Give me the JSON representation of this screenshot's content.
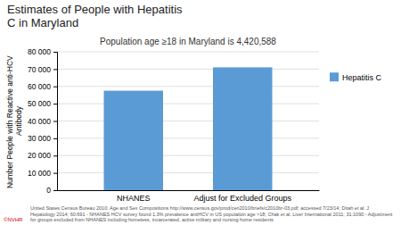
{
  "chart_data": {
    "type": "bar",
    "title": "Estimates of People with Hepatitis\nC in Maryland",
    "subtitle": "Population age ≥18 in Maryland is 4,420,588",
    "categories": [
      "NHANES",
      "Adjust for Excluded Groups"
    ],
    "series": [
      {
        "name": "Hepatitis C",
        "color": "#5B9BD5",
        "values": [
          57500,
          71000
        ]
      }
    ],
    "ylabel": "Number People with Reactive anti-HCV Antibody",
    "ylim": [
      0,
      80000
    ],
    "yticks": [
      0,
      {
        "value": 10000,
        "label": "10 000"
      },
      {
        "value": 20000,
        "label": "20 000"
      },
      {
        "value": 30000,
        "label": "30 000"
      },
      {
        "value": 40000,
        "label": "40 000"
      },
      {
        "value": 50000,
        "label": "50 000"
      },
      {
        "value": 60000,
        "label": "60 000"
      },
      {
        "value": 70000,
        "label": "70 000"
      },
      {
        "value": 80000,
        "label": "80 000"
      }
    ],
    "grid": true,
    "legend": "upper right",
    "footnote": "United States Census Bureau 2010: Age and Sex Compositions http://www.census.gov/prod/cen2010/briefs/c2010br-03.pdf; accessed 7/23/14; Ditah et al. J\nHepatology 2014; 60:691 - NHANES HCV survey found 1.3% prevalence antiHCV in US population age >18; Chak et al. Liver International 2011; 31:1090 - Adjustment\nfor groups excluded from NHANES including homeless, incarcerated, active military and nursing home residents",
    "annotations": [
      {
        "text": "©NVHR",
        "color": "#cc0000"
      }
    ]
  }
}
